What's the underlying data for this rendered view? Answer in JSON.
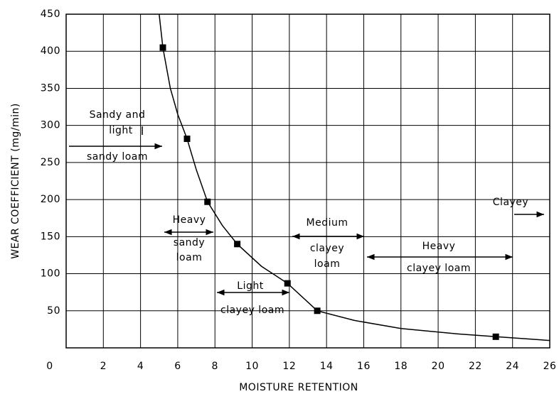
{
  "chart_data": {
    "type": "scatter",
    "x_label": "MOISTURE RETENTION",
    "y_label": "WEAR COEFFICIENT (mg/min)",
    "x": [
      5.2,
      6.5,
      7.6,
      9.2,
      11.9,
      13.5,
      23.1
    ],
    "values": [
      405,
      282,
      197,
      140,
      87,
      50,
      15
    ],
    "color": "#000000",
    "fit": {
      "x": [
        5.0,
        5.2,
        5.6,
        6.0,
        6.5,
        7.0,
        7.6,
        8.4,
        9.2,
        10.5,
        11.9,
        13.5,
        15.5,
        18.0,
        21.0,
        23.1,
        26.0
      ],
      "values": [
        450,
        405,
        350,
        315,
        282,
        240,
        197,
        165,
        140,
        110,
        87,
        50,
        37,
        26,
        19,
        15,
        10
      ]
    },
    "xlim": [
      0,
      26
    ],
    "ylim": [
      0,
      450
    ],
    "xticks": [
      0,
      2,
      4,
      6,
      8,
      10,
      12,
      14,
      16,
      18,
      20,
      22,
      24,
      26
    ],
    "yticks": [
      50,
      100,
      150,
      200,
      250,
      300,
      350,
      400,
      450
    ],
    "grid": true,
    "annotations": [
      {
        "lines": [
          "Sandy and",
          "light",
          "sandy loam"
        ]
      },
      {
        "lines": [
          "Heavy",
          "sandy",
          "loam"
        ]
      },
      {
        "lines": [
          "Light",
          "clayey loam"
        ]
      },
      {
        "lines": [
          "Medium",
          "clayey",
          "loam"
        ]
      },
      {
        "lines": [
          "Heavy",
          "clayey loam"
        ]
      },
      {
        "lines": [
          "Clayey"
        ]
      }
    ]
  }
}
